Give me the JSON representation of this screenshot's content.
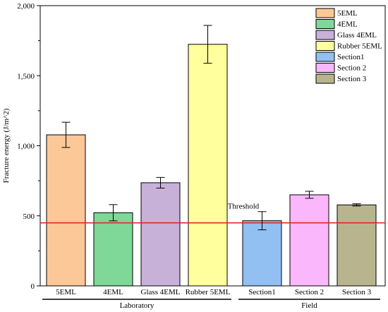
{
  "chart_data": {
    "type": "bar",
    "ylabel": "Fracture energy (J/m^2)",
    "ylim": [
      0,
      2000
    ],
    "yticks": [
      0,
      500,
      1000,
      1500,
      2000
    ],
    "ytick_labels": [
      "0",
      "500",
      "1,000",
      "1,500",
      "2,000"
    ],
    "threshold": {
      "value": 450,
      "label": "Threshold",
      "color": "#e32626"
    },
    "groups": [
      {
        "label": "Laboratory",
        "start": 0,
        "end": 3
      },
      {
        "label": "Field",
        "start": 4,
        "end": 6
      }
    ],
    "bars": [
      {
        "category": "5EML",
        "value": 1078,
        "error": 90,
        "color": "#fdc897"
      },
      {
        "category": "4EML",
        "value": 522,
        "error": 58,
        "color": "#7fd898"
      },
      {
        "category": "Glass 4EML",
        "value": 736,
        "error": 38,
        "color": "#c8b1d9"
      },
      {
        "category": "Rubber 5EML",
        "value": 1724,
        "error": 135,
        "color": "#ffff9e"
      },
      {
        "category": "Section1",
        "value": 465,
        "error": 65,
        "color": "#92c0f2"
      },
      {
        "category": "Section 2",
        "value": 650,
        "error": 25,
        "color": "#fbb7fb"
      },
      {
        "category": "Section 3",
        "value": 578,
        "error": 8,
        "color": "#b8b58e"
      }
    ]
  }
}
